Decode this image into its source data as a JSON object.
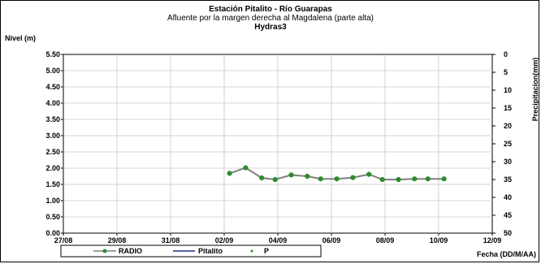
{
  "chart_data": {
    "type": "line",
    "title": "Estación Pitalito  - Río Guarapas",
    "subtitle": "Afluente por la margen derecha al Magdalena (parte alta)",
    "subtitle2": "Hydras3",
    "ylabel": "Nivel (m)",
    "y2label": "Precipitacion(mm)",
    "xlabel": "Fecha (DD/M/AA)",
    "ylim": [
      0,
      5.5
    ],
    "y2lim": [
      0,
      50
    ],
    "y2_inverted": true,
    "grid": true,
    "legend_placement": "bottom",
    "x_ticks": [
      "27/08",
      "29/08",
      "31/08",
      "02/09",
      "04/09",
      "06/09",
      "08/09",
      "10/09",
      "12/09"
    ],
    "y_ticks": [
      "0.00",
      "0.50",
      "1.00",
      "1.50",
      "2.00",
      "2.50",
      "3.00",
      "3.50",
      "4.00",
      "4.50",
      "5.00",
      "5.50"
    ],
    "y2_ticks": [
      "0",
      "5",
      "10",
      "15",
      "20",
      "25",
      "30",
      "35",
      "40",
      "45",
      "50"
    ],
    "series": [
      {
        "name": "RADIO",
        "color": "#808080",
        "marker_color": "#2e8b2e",
        "x": [
          "02/09",
          "03/09",
          "03/09",
          "04/09",
          "04/09",
          "05/09",
          "05/09",
          "06/09",
          "06/09",
          "07/09",
          "07/09",
          "08/09",
          "08/09",
          "09/09",
          "09/09"
        ],
        "x_numeric_days": [
          6.2,
          6.8,
          7.4,
          7.9,
          8.5,
          9.1,
          9.6,
          10.2,
          10.8,
          11.4,
          11.9,
          12.5,
          13.1,
          13.6,
          14.2
        ],
        "values": [
          1.84,
          2.01,
          1.7,
          1.65,
          1.79,
          1.75,
          1.67,
          1.67,
          1.71,
          1.81,
          1.65,
          1.65,
          1.67,
          1.67,
          1.67
        ]
      },
      {
        "name": "Pitalito",
        "color": "#1f2d8c",
        "values": []
      },
      {
        "name": "P",
        "color": "#2e8b2e",
        "values": []
      }
    ]
  }
}
